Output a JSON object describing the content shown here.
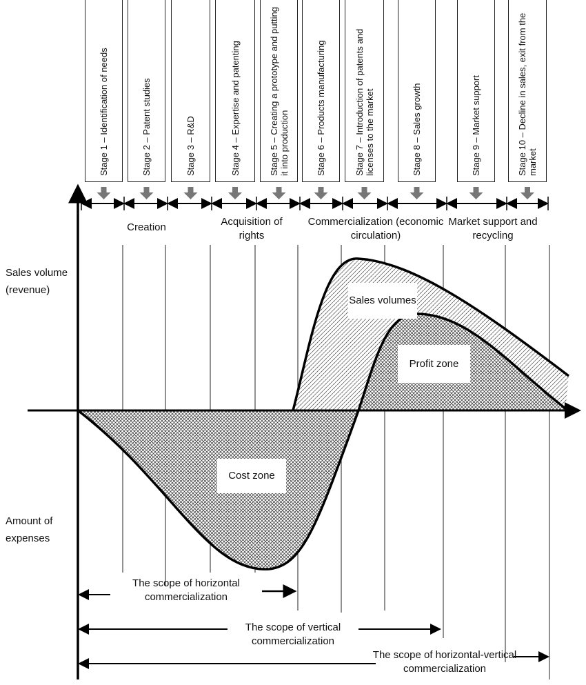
{
  "stages": [
    "Stage 1 – Identification of needs",
    "Stage 2 – Patent studies",
    "Stage 3 – R&D",
    "Stage 4 – Expertise and patenting",
    "Stage 5 – Creating a prototype and putting it into production",
    "Stage 6 – Products manufacturing",
    "Stage 7 – Introduction of patents and licenses to the market",
    "Stage 8 – Sales growth",
    "Stage 9 – Market support",
    "Stage 10 – Decline in sales, exit from the market"
  ],
  "phases": [
    "Creation",
    "Acquisition of rights",
    "Commercialization (economic circulation)",
    "Market support and recycling"
  ],
  "axes": {
    "y_positive": "Sales volume (revenue)",
    "y_negative": "Amount of expenses"
  },
  "zones": {
    "sales": "Sales volumes",
    "profit": "Profit zone",
    "cost": "Cost zone"
  },
  "scopes": [
    "The scope of horizontal commercialization",
    "The scope of vertical commercialization",
    "The scope of horizontal-vertical commercialization"
  ]
}
